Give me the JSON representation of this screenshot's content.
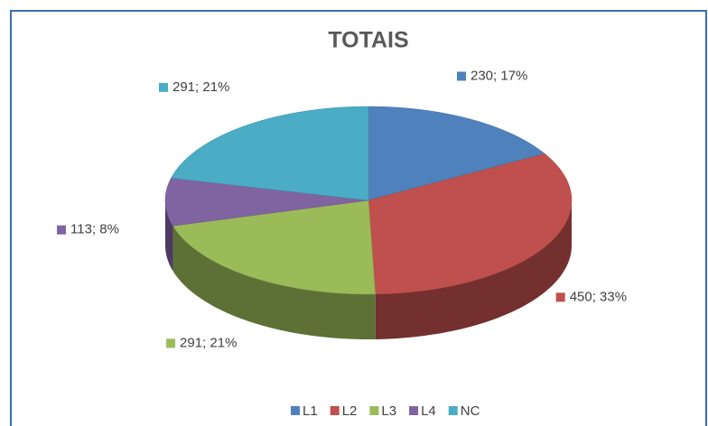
{
  "chart_data": {
    "type": "pie",
    "title": "TOTAIS",
    "categories": [
      "L1",
      "L2",
      "L3",
      "L4",
      "NC"
    ],
    "values": [
      230,
      450,
      291,
      113,
      291
    ],
    "value_labels": [
      "230; 17%",
      "450; 33%",
      "291; 21%",
      "113; 8%",
      "291; 21%"
    ],
    "colors": [
      "#4f81bd",
      "#c0504d",
      "#9bbb59",
      "#8064a2",
      "#4bacc6"
    ],
    "legend": "bottom"
  }
}
